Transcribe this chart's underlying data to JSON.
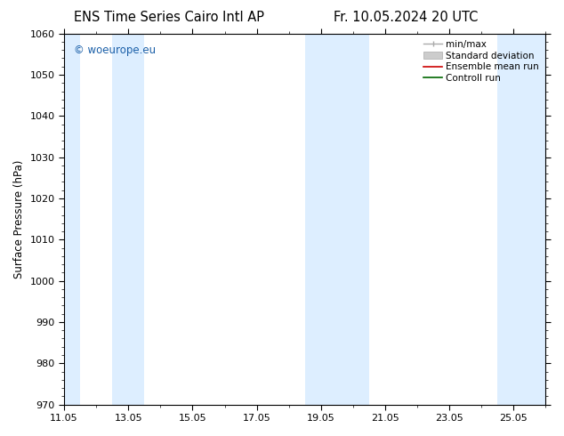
{
  "title_left": "ENS Time Series Cairo Intl AP",
  "title_right": "Fr. 10.05.2024 20 UTC",
  "ylabel": "Surface Pressure (hPa)",
  "ylim": [
    970,
    1060
  ],
  "yticks": [
    970,
    980,
    990,
    1000,
    1010,
    1020,
    1030,
    1040,
    1050,
    1060
  ],
  "xlim": [
    0,
    15
  ],
  "xtick_labels": [
    "11.05",
    "13.05",
    "15.05",
    "17.05",
    "19.05",
    "21.05",
    "23.05",
    "25.05"
  ],
  "xtick_positions": [
    0,
    2,
    4,
    6,
    8,
    10,
    12,
    14
  ],
  "shaded_bands": [
    {
      "x_start": -0.1,
      "x_end": 0.5,
      "color": "#ddeeff"
    },
    {
      "x_start": 1.5,
      "x_end": 2.5,
      "color": "#ddeeff"
    },
    {
      "x_start": 7.5,
      "x_end": 9.5,
      "color": "#ddeeff"
    },
    {
      "x_start": 13.5,
      "x_end": 15.1,
      "color": "#ddeeff"
    }
  ],
  "watermark_text": "© woeurope.eu",
  "watermark_color": "#1a5fa8",
  "bg_color": "#ffffff",
  "plot_bg_color": "#ffffff",
  "title_fontsize": 10.5,
  "tick_fontsize": 8,
  "label_fontsize": 8.5,
  "legend_fontsize": 7.5
}
